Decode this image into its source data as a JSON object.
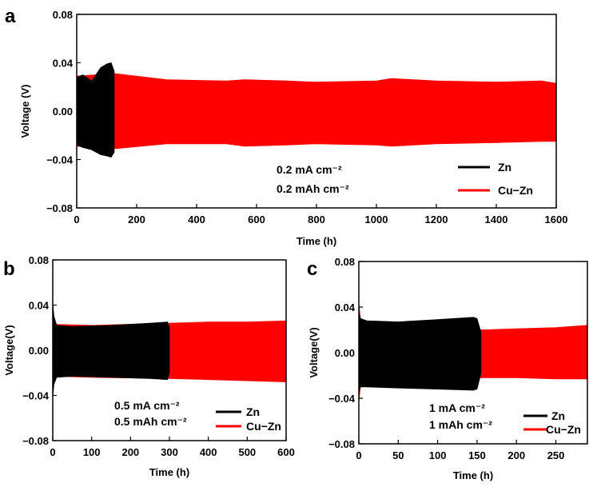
{
  "chart_data": [
    {
      "panel_label": "a",
      "type": "line",
      "xlabel": "Time (h)",
      "ylabel": "Voltage (V)",
      "xlim": [
        0,
        1600
      ],
      "ylim": [
        -0.08,
        0.08
      ],
      "xticks": [
        0,
        200,
        400,
        600,
        800,
        1000,
        1200,
        1400,
        1600
      ],
      "yticks": [
        0.08,
        0.04,
        0.0,
        -0.04,
        -0.08
      ],
      "ytick_labels": [
        "0.08",
        "0.04",
        "0.00",
        "−0.04",
        "−0.08"
      ],
      "annotation": [
        "0.2 mA cm⁻²",
        "0.2 mAh cm⁻²"
      ],
      "legend": [
        {
          "name": "Zn",
          "color": "#000000"
        },
        {
          "name": "Cu−Zn",
          "color": "#ff0000"
        }
      ],
      "series": [
        {
          "name": "Cu−Zn",
          "color": "#ff0000",
          "x": [
            0,
            60,
            130,
            300,
            500,
            560,
            700,
            800,
            1000,
            1050,
            1200,
            1400,
            1550,
            1600
          ],
          "upper": [
            0.029,
            0.03,
            0.031,
            0.026,
            0.025,
            0.026,
            0.025,
            0.024,
            0.025,
            0.027,
            0.025,
            0.024,
            0.025,
            0.023
          ],
          "lower": [
            -0.029,
            -0.03,
            -0.031,
            -0.027,
            -0.027,
            -0.029,
            -0.028,
            -0.027,
            -0.028,
            -0.029,
            -0.027,
            -0.026,
            -0.025,
            -0.025
          ]
        },
        {
          "name": "Zn",
          "color": "#000000",
          "x": [
            0,
            20,
            50,
            80,
            100,
            115,
            125
          ],
          "upper": [
            0.028,
            0.03,
            0.025,
            0.036,
            0.039,
            0.04,
            0.033
          ],
          "lower": [
            -0.028,
            -0.03,
            -0.032,
            -0.036,
            -0.037,
            -0.038,
            -0.034
          ]
        }
      ]
    },
    {
      "panel_label": "b",
      "type": "line",
      "xlabel": "Time (h)",
      "ylabel": "Voltage(V)",
      "xlim": [
        0,
        600
      ],
      "ylim": [
        -0.08,
        0.08
      ],
      "xticks": [
        0,
        100,
        200,
        300,
        400,
        500,
        600
      ],
      "yticks": [
        0.08,
        0.04,
        0.0,
        -0.04,
        -0.08
      ],
      "ytick_labels": [
        "0.08",
        "0.04",
        "0.00",
        "−0.04",
        "−0.08"
      ],
      "annotation": [
        "0.5 mA cm⁻²",
        "0.5 mAh cm⁻²"
      ],
      "legend": [
        {
          "name": "Zn",
          "color": "#000000"
        },
        {
          "name": "Cu−Zn",
          "color": "#ff0000"
        }
      ],
      "series": [
        {
          "name": "Cu−Zn",
          "color": "#ff0000",
          "x": [
            0,
            100,
            300,
            400,
            500,
            600
          ],
          "upper": [
            0.023,
            0.022,
            0.024,
            0.025,
            0.025,
            0.026
          ],
          "lower": [
            -0.023,
            -0.024,
            -0.025,
            -0.026,
            -0.027,
            -0.028
          ]
        },
        {
          "name": "Zn",
          "color": "#000000",
          "x": [
            0,
            3,
            10,
            50,
            150,
            250,
            295,
            300
          ],
          "upper": [
            0.042,
            0.03,
            0.022,
            0.021,
            0.022,
            0.024,
            0.025,
            0.02
          ],
          "lower": [
            -0.042,
            -0.03,
            -0.024,
            -0.023,
            -0.024,
            -0.025,
            -0.026,
            -0.02
          ]
        }
      ]
    },
    {
      "panel_label": "c",
      "type": "line",
      "xlabel": "Time (h)",
      "ylabel": "Voltage(V)",
      "xlim": [
        0,
        290
      ],
      "ylim": [
        -0.08,
        0.08
      ],
      "xticks": [
        0,
        50,
        100,
        150,
        200,
        250
      ],
      "yticks": [
        0.08,
        0.04,
        0.0,
        -0.04,
        -0.08
      ],
      "ytick_labels": [
        "0.08",
        "0.04",
        "0.00",
        "−0.04",
        "−0.08"
      ],
      "annotation": [
        "1 mA cm⁻²",
        "1 mAh cm⁻²"
      ],
      "legend": [
        {
          "name": "Zn",
          "color": "#000000"
        },
        {
          "name": "Cu−Zn",
          "color": "#ff0000"
        }
      ],
      "series": [
        {
          "name": "Cu−Zn",
          "color": "#ff0000",
          "x": [
            0,
            2,
            10,
            160,
            200,
            250,
            290
          ],
          "upper": [
            0.043,
            0.03,
            0.024,
            0.02,
            0.021,
            0.022,
            0.024
          ],
          "lower": [
            -0.043,
            -0.03,
            -0.025,
            -0.022,
            -0.022,
            -0.023,
            -0.023
          ]
        },
        {
          "name": "Zn",
          "color": "#000000",
          "x": [
            0,
            2,
            10,
            50,
            100,
            145,
            150,
            155
          ],
          "upper": [
            0.035,
            0.03,
            0.028,
            0.027,
            0.029,
            0.031,
            0.03,
            0.018
          ],
          "lower": [
            -0.035,
            -0.03,
            -0.03,
            -0.031,
            -0.032,
            -0.033,
            -0.032,
            -0.018
          ]
        }
      ]
    }
  ]
}
